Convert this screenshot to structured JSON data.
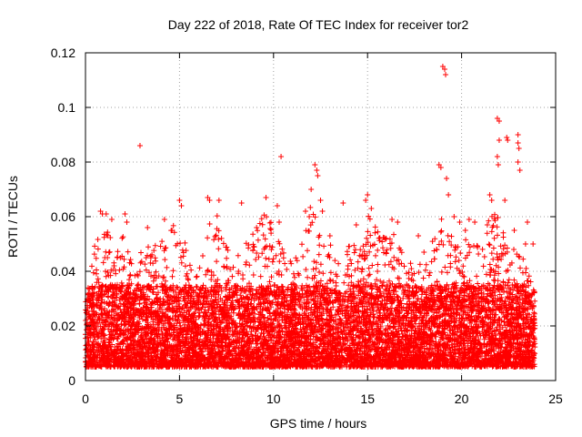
{
  "chart_data": {
    "type": "scatter",
    "title": "Day 222 of 2018, Rate Of TEC Index for receiver tor2",
    "xlabel": "GPS time / hours",
    "ylabel": "ROTI / TECUs",
    "xlim": [
      0,
      25
    ],
    "ylim": [
      0,
      0.12
    ],
    "xticks": [
      0,
      5,
      10,
      15,
      20,
      25
    ],
    "xtick_labels": [
      "0",
      "5",
      "10",
      "15",
      "20",
      "25"
    ],
    "yticks": [
      0,
      0.02,
      0.04,
      0.06,
      0.08,
      0.1,
      0.12
    ],
    "ytick_labels": [
      "0",
      "0.02",
      "0.04",
      "0.06",
      "0.08",
      "0.1",
      "0.12"
    ],
    "grid": true,
    "marker": "plus",
    "series": [
      {
        "name": "ROTI",
        "color": "#ff0000",
        "points": [
          [
            2.9,
            0.086
          ],
          [
            10.4,
            0.082
          ],
          [
            19.0,
            0.115
          ],
          [
            19.1,
            0.114
          ],
          [
            19.15,
            0.112
          ],
          [
            21.9,
            0.096
          ],
          [
            22.0,
            0.095
          ],
          [
            22.4,
            0.089
          ],
          [
            22.45,
            0.088
          ],
          [
            23.0,
            0.09
          ],
          [
            23.0,
            0.087
          ],
          [
            23.05,
            0.085
          ],
          [
            23.0,
            0.08
          ],
          [
            23.1,
            0.077
          ],
          [
            18.8,
            0.079
          ],
          [
            18.9,
            0.078
          ],
          [
            12.2,
            0.079
          ],
          [
            12.3,
            0.077
          ],
          [
            12.35,
            0.075
          ],
          [
            21.9,
            0.082
          ],
          [
            21.95,
            0.079
          ],
          [
            22.0,
            0.088
          ],
          [
            19.2,
            0.074
          ],
          [
            19.3,
            0.068
          ],
          [
            15.0,
            0.068
          ],
          [
            14.9,
            0.066
          ],
          [
            6.5,
            0.067
          ],
          [
            6.6,
            0.066
          ],
          [
            7.1,
            0.066
          ],
          [
            9.6,
            0.067
          ],
          [
            10.2,
            0.064
          ],
          [
            5.0,
            0.066
          ],
          [
            5.1,
            0.064
          ],
          [
            8.3,
            0.065
          ],
          [
            13.7,
            0.065
          ],
          [
            21.5,
            0.068
          ],
          [
            21.6,
            0.066
          ],
          [
            22.3,
            0.066
          ],
          [
            0.8,
            0.062
          ],
          [
            0.9,
            0.061
          ],
          [
            1.1,
            0.061
          ],
          [
            1.4,
            0.059
          ],
          [
            2.1,
            0.061
          ],
          [
            2.2,
            0.058
          ],
          [
            4.2,
            0.059
          ],
          [
            3.3,
            0.056
          ],
          [
            4.6,
            0.055
          ],
          [
            15.2,
            0.063
          ],
          [
            16.3,
            0.059
          ],
          [
            16.6,
            0.058
          ],
          [
            19.6,
            0.06
          ],
          [
            19.9,
            0.058
          ],
          [
            20.4,
            0.059
          ],
          [
            20.7,
            0.058
          ],
          [
            20.2,
            0.055
          ],
          [
            23.5,
            0.058
          ],
          [
            23.4,
            0.05
          ],
          [
            11.7,
            0.062
          ],
          [
            11.9,
            0.06
          ],
          [
            12.0,
            0.07
          ],
          [
            12.5,
            0.066
          ],
          [
            12.6,
            0.062
          ],
          [
            10.3,
            0.058
          ],
          [
            9.1,
            0.056
          ],
          [
            13.0,
            0.053
          ],
          [
            14.4,
            0.057
          ],
          [
            17.7,
            0.053
          ],
          [
            18.0,
            0.047
          ],
          [
            22.8,
            0.055
          ],
          [
            23.8,
            0.05
          ]
        ],
        "dense_band": {
          "typical_range": [
            0.005,
            0.035
          ],
          "envelope": [
            [
              0,
              0.03
            ],
            [
              0.5,
              0.05
            ],
            [
              1,
              0.058
            ],
            [
              1.5,
              0.05
            ],
            [
              2,
              0.055
            ],
            [
              2.5,
              0.042
            ],
            [
              3,
              0.048
            ],
            [
              3.5,
              0.05
            ],
            [
              4,
              0.052
            ],
            [
              4.5,
              0.058
            ],
            [
              5,
              0.058
            ],
            [
              5.5,
              0.045
            ],
            [
              6,
              0.04
            ],
            [
              6.5,
              0.063
            ],
            [
              7,
              0.062
            ],
            [
              7.5,
              0.052
            ],
            [
              8,
              0.045
            ],
            [
              8.5,
              0.05
            ],
            [
              9,
              0.055
            ],
            [
              9.5,
              0.062
            ],
            [
              10,
              0.058
            ],
            [
              10.5,
              0.048
            ],
            [
              11,
              0.045
            ],
            [
              11.5,
              0.05
            ],
            [
              12,
              0.065
            ],
            [
              12.5,
              0.06
            ],
            [
              13,
              0.05
            ],
            [
              13.5,
              0.045
            ],
            [
              14,
              0.05
            ],
            [
              14.5,
              0.052
            ],
            [
              15,
              0.062
            ],
            [
              15.5,
              0.055
            ],
            [
              16,
              0.052
            ],
            [
              16.5,
              0.056
            ],
            [
              17,
              0.045
            ],
            [
              17.5,
              0.042
            ],
            [
              18,
              0.045
            ],
            [
              18.5,
              0.055
            ],
            [
              19,
              0.062
            ],
            [
              19.5,
              0.055
            ],
            [
              20,
              0.055
            ],
            [
              20.5,
              0.056
            ],
            [
              21,
              0.048
            ],
            [
              21.5,
              0.062
            ],
            [
              22,
              0.06
            ],
            [
              22.5,
              0.048
            ],
            [
              23,
              0.052
            ],
            [
              23.5,
              0.042
            ],
            [
              23.9,
              0.035
            ]
          ]
        }
      }
    ]
  }
}
